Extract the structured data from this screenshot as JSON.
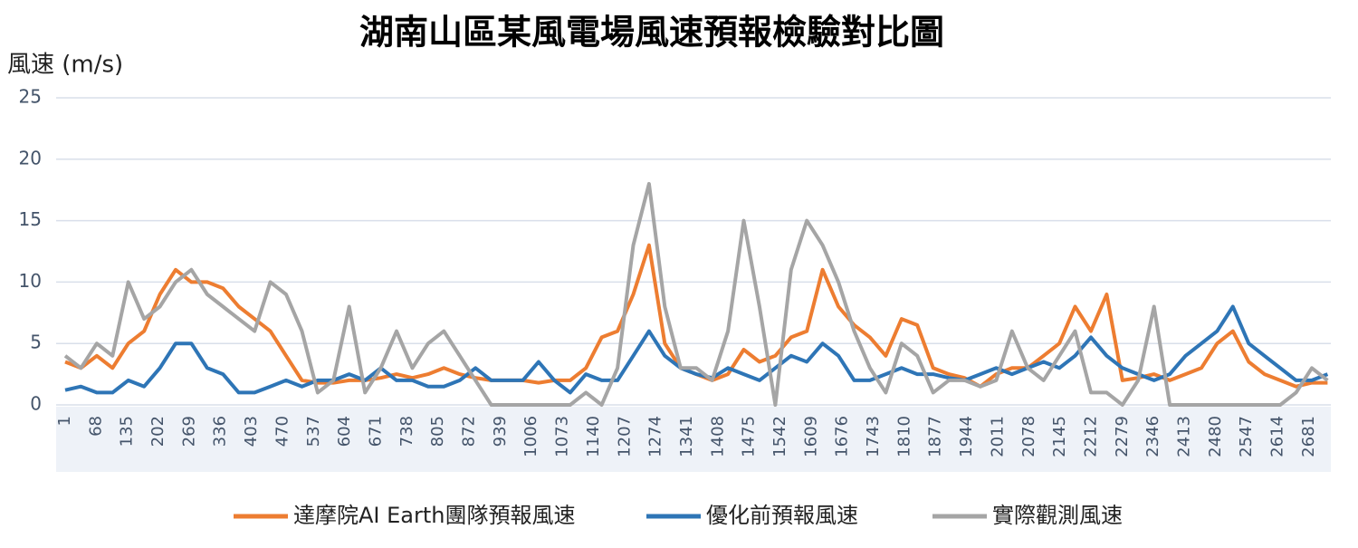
{
  "chart_data": {
    "type": "line",
    "title": "湖南山區某風電場風速預報檢驗對比圖",
    "y_label": "風速 (m/s)",
    "x": [
      1,
      35,
      69,
      103,
      137,
      171,
      205,
      239,
      273,
      307,
      341,
      375,
      409,
      443,
      477,
      511,
      545,
      579,
      613,
      647,
      681,
      715,
      749,
      783,
      817,
      851,
      885,
      919,
      953,
      987,
      1021,
      1055,
      1089,
      1123,
      1157,
      1191,
      1225,
      1259,
      1293,
      1327,
      1361,
      1395,
      1429,
      1463,
      1497,
      1531,
      1565,
      1599,
      1633,
      1667,
      1701,
      1735,
      1769,
      1803,
      1837,
      1871,
      1905,
      1939,
      1973,
      2007,
      2041,
      2075,
      2109,
      2143,
      2177,
      2211,
      2245,
      2279,
      2313,
      2347,
      2381,
      2415,
      2449,
      2483,
      2517,
      2551,
      2585,
      2619,
      2653,
      2687,
      2721
    ],
    "xlim": [
      1,
      2728
    ],
    "xticks": [
      1,
      68,
      135,
      202,
      269,
      336,
      403,
      470,
      537,
      604,
      671,
      738,
      805,
      872,
      939,
      1006,
      1073,
      1140,
      1207,
      1274,
      1341,
      1408,
      1475,
      1542,
      1609,
      1676,
      1743,
      1810,
      1877,
      1944,
      2011,
      2078,
      2145,
      2212,
      2279,
      2346,
      2413,
      2480,
      2547,
      2614,
      2681
    ],
    "ylim": [
      0,
      25
    ],
    "yticks": [
      0,
      5,
      10,
      15,
      20,
      25
    ],
    "grid": true,
    "legend": "bottom",
    "series": [
      {
        "name": "達摩院AI Earth團隊預報風速",
        "color": "#ed7d31",
        "values": [
          3.5,
          3,
          4,
          3,
          5,
          6,
          9,
          11,
          10,
          10,
          9.5,
          8,
          7,
          6,
          4,
          2,
          1.8,
          1.8,
          2,
          2,
          2.2,
          2.5,
          2.2,
          2.5,
          3,
          2.5,
          2.2,
          2,
          2,
          2,
          1.8,
          2,
          2,
          3,
          5.5,
          6,
          9,
          13,
          5,
          3,
          2.5,
          2,
          2.5,
          4.5,
          3.5,
          4,
          5.5,
          6,
          11,
          8,
          6.5,
          5.5,
          4,
          7,
          6.5,
          3,
          2.5,
          2.2,
          1.5,
          2.5,
          3,
          3,
          4,
          5,
          8,
          6,
          9,
          2,
          2.2,
          2.5,
          2,
          2.5,
          3,
          5,
          6,
          3.5,
          2.5,
          2,
          1.5,
          1.8,
          1.8
        ]
      },
      {
        "name": "優化前預報風速",
        "color": "#2e75b6",
        "values": [
          1.2,
          1.5,
          1,
          1,
          2,
          1.5,
          3,
          5,
          5,
          3,
          2.5,
          1,
          1,
          1.5,
          2,
          1.5,
          2,
          2,
          2.5,
          2,
          3,
          2,
          2,
          1.5,
          1.5,
          2,
          3,
          2,
          2,
          2,
          3.5,
          2,
          1,
          2.5,
          2,
          2,
          4,
          6,
          4,
          3,
          2.5,
          2.2,
          3,
          2.5,
          2,
          3,
          4,
          3.5,
          5,
          4,
          2,
          2,
          2.5,
          3,
          2.5,
          2.5,
          2.2,
          2,
          2.5,
          3,
          2.5,
          3,
          3.5,
          3,
          4,
          5.5,
          4,
          3,
          2.5,
          2,
          2.5,
          4,
          5,
          6,
          8,
          5,
          4,
          3,
          2,
          2,
          2.5
        ]
      },
      {
        "name": "實際觀測風速",
        "color": "#a5a5a5",
        "values": [
          4,
          3,
          5,
          4,
          10,
          7,
          8,
          10,
          11,
          9,
          8,
          7,
          6,
          10,
          9,
          6,
          1,
          2,
          8,
          1,
          3,
          6,
          3,
          5,
          6,
          4,
          2,
          0,
          0,
          0,
          0,
          0,
          0,
          1,
          0,
          3,
          13,
          18,
          8,
          3,
          3,
          2,
          6,
          15,
          8,
          0,
          11,
          15,
          13,
          10,
          6,
          3,
          1,
          5,
          4,
          1,
          2,
          2,
          1.5,
          2,
          6,
          3,
          2,
          4,
          6,
          1,
          1,
          0,
          2,
          8,
          0,
          0,
          0,
          0,
          0,
          0,
          0,
          0,
          1,
          3,
          2
        ]
      }
    ]
  }
}
